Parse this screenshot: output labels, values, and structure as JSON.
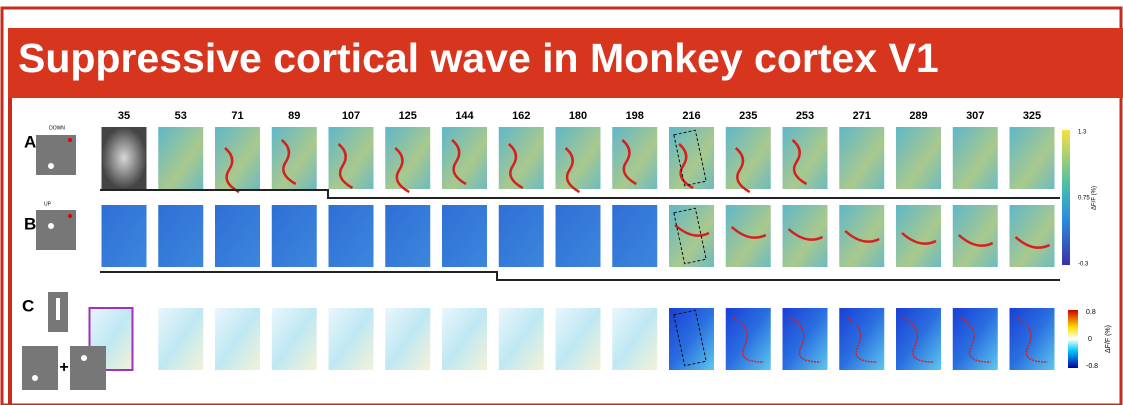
{
  "title": "Suppressive cortical wave in Monkey cortex V1",
  "frames": [
    35,
    53,
    71,
    89,
    107,
    125,
    144,
    162,
    180,
    198,
    216,
    235,
    253,
    271,
    289,
    307,
    325
  ],
  "rows": [
    {
      "label": "A",
      "condition": "DOWN"
    },
    {
      "label": "B",
      "condition": "UP"
    },
    {
      "label": "C"
    }
  ],
  "colorbar_top": {
    "max": "1.3",
    "mid": "0.75",
    "min": "-0.3",
    "unit": "ΔF/F (%)"
  },
  "colorbar_bottom": {
    "max": "0.8",
    "mid": "0",
    "min": "-0.8",
    "unit": "ΔF/F (%)"
  }
}
